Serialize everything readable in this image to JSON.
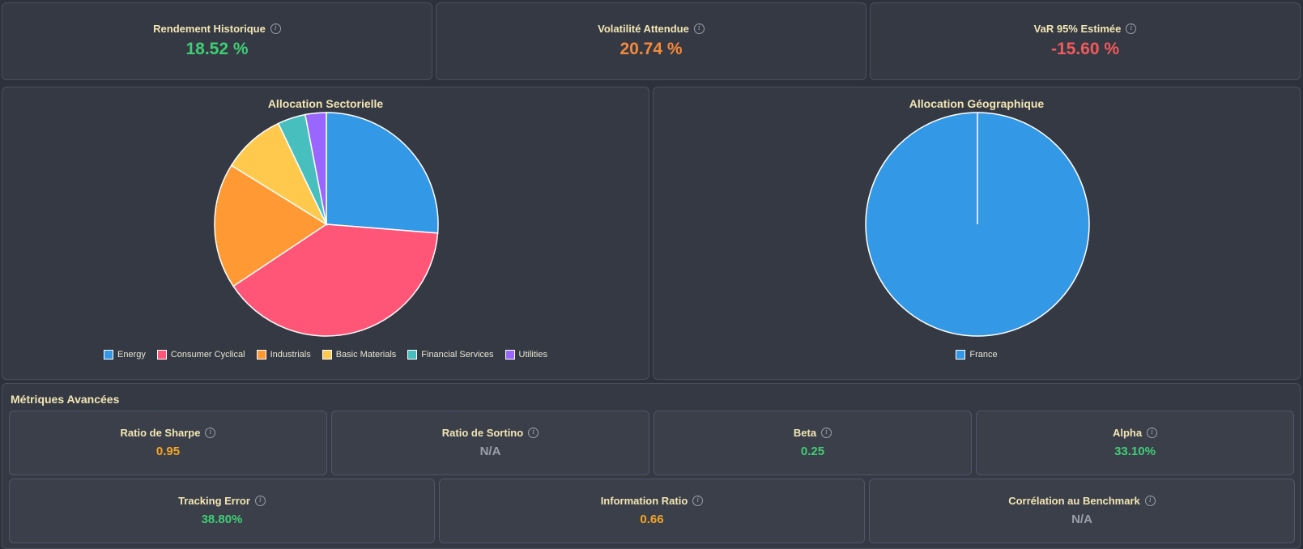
{
  "kpis": [
    {
      "label": "Rendement Historique",
      "value": "18.52 %",
      "color": "#3ecf74"
    },
    {
      "label": "Volatilité Attendue",
      "value": "20.74 %",
      "color": "#f5893a"
    },
    {
      "label": "VaR 95% Estimée",
      "value": "-15.60 %",
      "color": "#f25b5b"
    }
  ],
  "chart_data": [
    {
      "type": "pie",
      "title": "Allocation Sectorielle",
      "categories": [
        "Energy",
        "Consumer Cyclical",
        "Industrials",
        "Basic Materials",
        "Financial Services",
        "Utilities"
      ],
      "values": [
        26,
        39,
        18,
        9,
        4,
        3
      ],
      "colors": [
        "#3399e6",
        "#ff5577",
        "#ff9933",
        "#ffc94d",
        "#48bfbf",
        "#9966ff"
      ],
      "legend": "bottom"
    },
    {
      "type": "pie",
      "title": "Allocation Géographique",
      "categories": [
        "France"
      ],
      "values": [
        100
      ],
      "colors": [
        "#3399e6"
      ],
      "legend": "bottom"
    }
  ],
  "advanced": {
    "title": "Métriques Avancées",
    "row1": [
      {
        "label": "Ratio de Sharpe",
        "value": "0.95",
        "color": "#f5a623"
      },
      {
        "label": "Ratio de Sortino",
        "value": "N/A",
        "color": "#9aa0aa"
      },
      {
        "label": "Beta",
        "value": "0.25",
        "color": "#3ecf74"
      },
      {
        "label": "Alpha",
        "value": "33.10%",
        "color": "#3ecf74"
      }
    ],
    "row2": [
      {
        "label": "Tracking Error",
        "value": "38.80%",
        "color": "#3ecf74"
      },
      {
        "label": "Information Ratio",
        "value": "0.66",
        "color": "#f5a623"
      },
      {
        "label": "Corrélation au Benchmark",
        "value": "N/A",
        "color": "#9aa0aa"
      }
    ]
  },
  "icons": {
    "info": "info-icon"
  }
}
